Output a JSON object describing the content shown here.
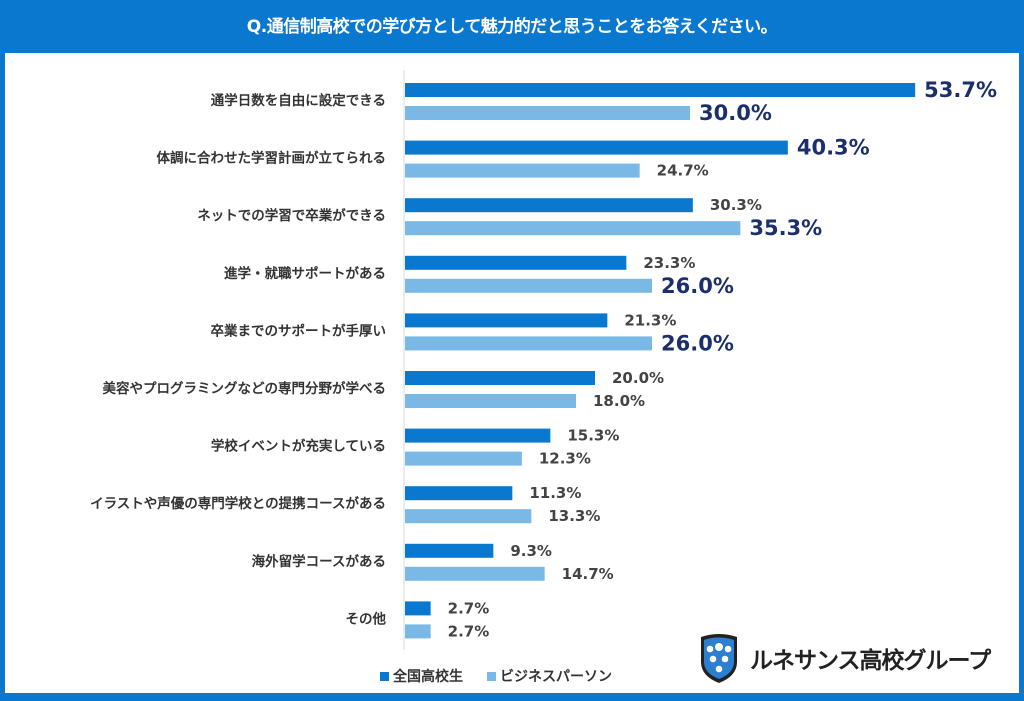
{
  "title": "Q.通信制高校での学び方として魅力的だと思うことをお答えください。",
  "colors": {
    "frame": "#0a78cf",
    "series1": "#0a78cf",
    "series2": "#7ab8e6",
    "highlight_label": "#1b2f6b"
  },
  "chart_data": {
    "type": "bar",
    "orientation": "horizontal",
    "title": "Q.通信制高校での学び方として魅力的だと思うことをお答えください。",
    "categories": [
      "通学日数を自由に設定できる",
      "体調に合わせた学習計画が立てられる",
      "ネットでの学習で卒業ができる",
      "進学・就職サポートがある",
      "卒業までのサポートが手厚い",
      "美容やプログラミングなどの専門分野が学べる",
      "学校イベントが充実している",
      "イラストや声優の専門学校との提携コースがある",
      "海外留学コースがある",
      "その他"
    ],
    "series": [
      {
        "name": "全国高校生",
        "color": "#0a78cf",
        "values": [
          53.7,
          40.3,
          30.3,
          23.3,
          21.3,
          20.0,
          15.3,
          11.3,
          9.3,
          2.7
        ],
        "labels": [
          "53.7%",
          "40.3%",
          "30.3%",
          "23.3%",
          "21.3%",
          "20.0%",
          "15.3%",
          "11.3%",
          "9.3%",
          "2.7%"
        ],
        "highlight": [
          true,
          true,
          false,
          false,
          false,
          false,
          false,
          false,
          false,
          false
        ]
      },
      {
        "name": "ビジネスパーソン",
        "color": "#7ab8e6",
        "values": [
          30.0,
          24.7,
          35.3,
          26.0,
          26.0,
          18.0,
          12.3,
          13.3,
          14.7,
          2.7
        ],
        "labels": [
          "30.0%",
          "24.7%",
          "35.3%",
          "26.0%",
          "26.0%",
          "18.0%",
          "12.3%",
          "13.3%",
          "14.7%",
          "2.7%"
        ],
        "highlight": [
          true,
          false,
          true,
          true,
          true,
          false,
          false,
          false,
          false,
          false
        ]
      }
    ],
    "xlim": [
      0,
      55
    ],
    "grid": false,
    "legend": "bottom"
  },
  "logo": {
    "text": "ルネサンス高校グループ",
    "icon": "shield-icon"
  }
}
